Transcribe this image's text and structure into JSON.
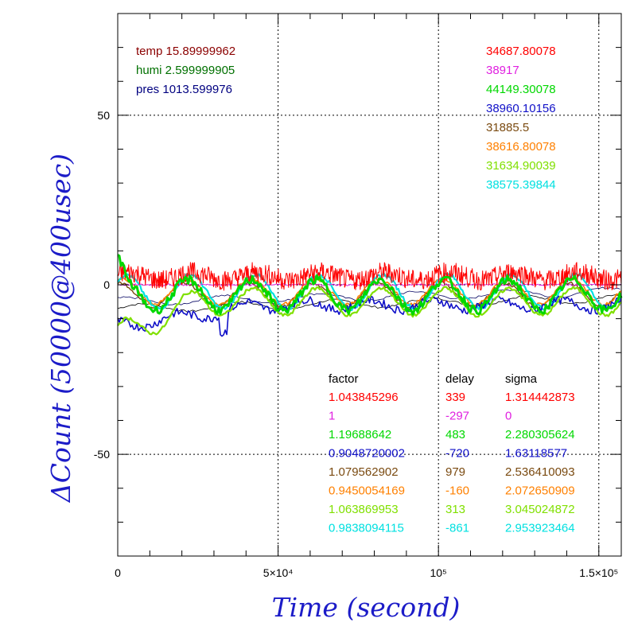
{
  "chart_data": {
    "type": "line",
    "xlabel": "Time (second)",
    "ylabel": "ΔCount (50000@400usec)",
    "xlim": [
      0,
      157000
    ],
    "ylim": [
      -80,
      80
    ],
    "grid": "dotted",
    "x_ticks": [
      {
        "value": 0,
        "label": "0"
      },
      {
        "value": 50000,
        "label": "5×10⁴"
      },
      {
        "value": 100000,
        "label": "10⁵"
      },
      {
        "value": 150000,
        "label": "1.5×10⁵"
      }
    ],
    "y_ticks": [
      {
        "value": 50,
        "label": "50"
      },
      {
        "value": 0,
        "label": "0"
      },
      {
        "value": -50,
        "label": "-50"
      }
    ],
    "env": [
      {
        "label": "temp",
        "value": "15.89999962",
        "color": "#8b0000"
      },
      {
        "label": "humi",
        "value": "2.599999905",
        "color": "#007000"
      },
      {
        "label": "pres",
        "value": "1013.599976",
        "color": "#000080"
      }
    ],
    "table_headers": {
      "factor": "factor",
      "delay": "delay",
      "sigma": "sigma"
    },
    "series": [
      {
        "base": "34687.80078",
        "factor": "1.043845296",
        "delay": "339",
        "sigma": "1.314442873",
        "color": "#ff0000"
      },
      {
        "base": "38917",
        "factor": "1",
        "delay": "-297",
        "sigma": "0",
        "color": "#e020e0"
      },
      {
        "base": "44149.30078",
        "factor": "1.19688642",
        "delay": "483",
        "sigma": "2.280305624",
        "color": "#00d800"
      },
      {
        "base": "38960.10156",
        "factor": "0.9048720002",
        "delay": "-720",
        "sigma": "1.63118577",
        "color": "#1010c8"
      },
      {
        "base": "31885.5",
        "factor": "1.079562902",
        "delay": "979",
        "sigma": "2.536410093",
        "color": "#7a4a10"
      },
      {
        "base": "38616.80078",
        "factor": "0.9450054169",
        "delay": "-160",
        "sigma": "2.072650909",
        "color": "#ff8000"
      },
      {
        "base": "31634.90039",
        "factor": "1.063869953",
        "delay": "313",
        "sigma": "3.045024872",
        "color": "#80e000"
      },
      {
        "base": "38575.39844",
        "factor": "0.9838094115",
        "delay": "-861",
        "sigma": "2.953923464",
        "color": "#00e0e0"
      }
    ],
    "extra_line_colors": [
      "#000000",
      "#000060"
    ]
  }
}
